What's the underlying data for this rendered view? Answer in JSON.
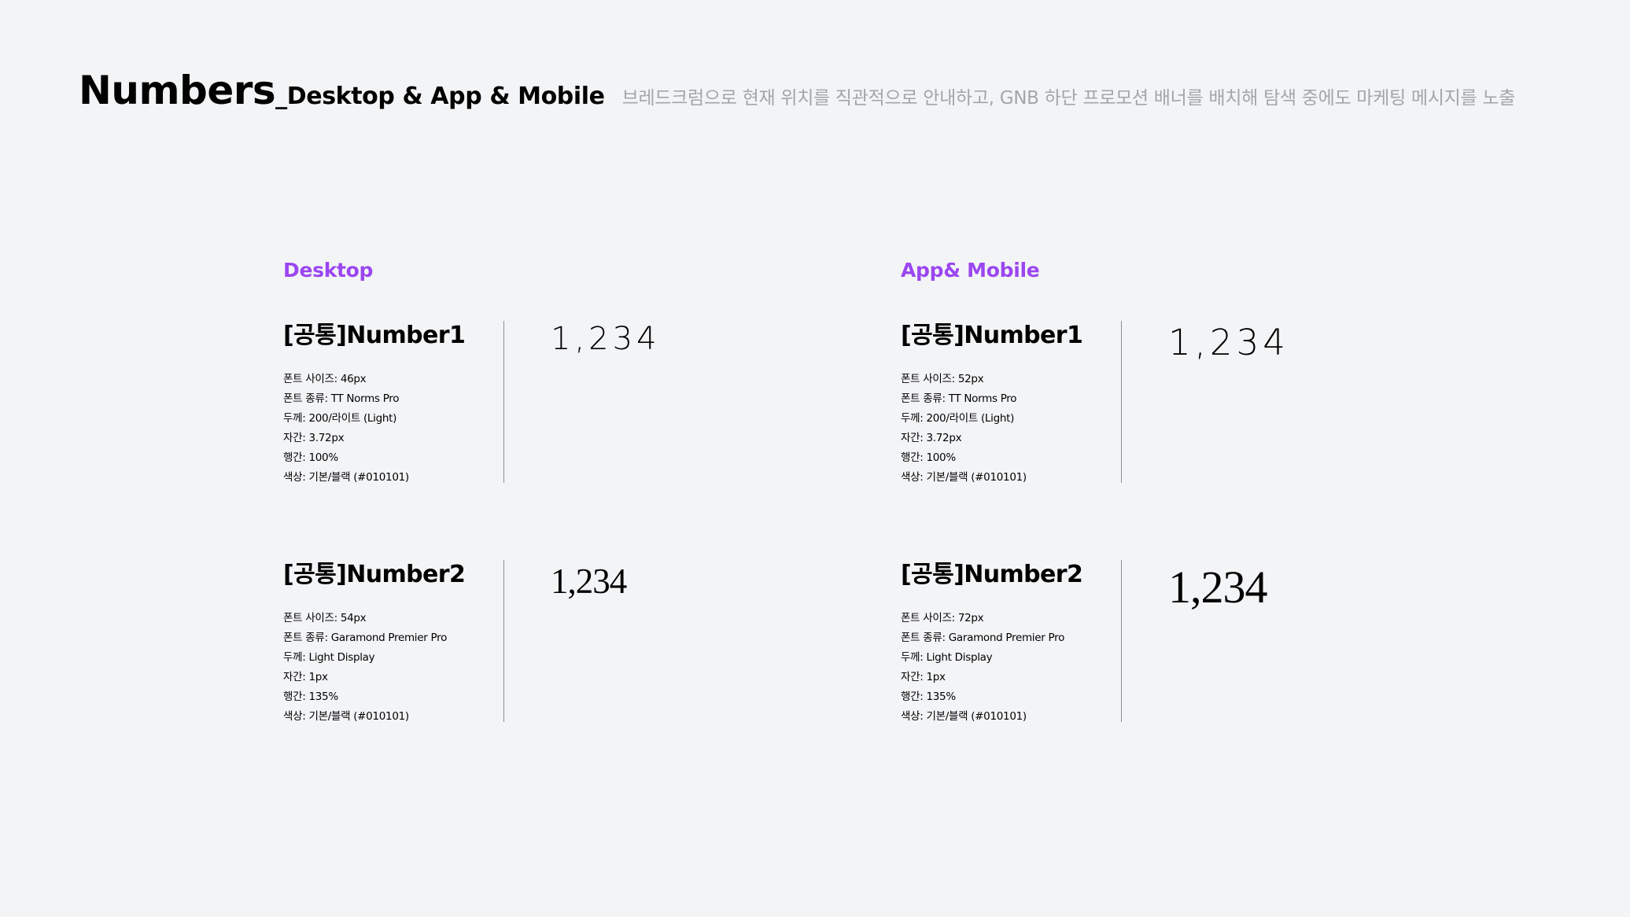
{
  "header": {
    "title_main": "Numbers",
    "title_sub": "_Desktop & App & Mobile",
    "description": "브레드크럼으로 현재 위치를 직관적으로 안내하고, GNB 하단 프로모션 배너를 배치해 탐색 중에도 마케팅 메시지를 노출"
  },
  "sections": {
    "desktop": {
      "label": "Desktop",
      "number1": {
        "name": "[공통]Number1",
        "sample": "1,234",
        "props": [
          "폰트 사이즈: 46px",
          "폰트 종류: TT Norms Pro",
          "두께: 200/라이트 (Light)",
          "자간: 3.72px",
          "행간: 100%",
          "색상: 기본/블랙 (#010101)"
        ]
      },
      "number2": {
        "name": "[공통]Number2",
        "sample": "1,234",
        "props": [
          "폰트 사이즈: 54px",
          "폰트 종류: Garamond Premier Pro",
          "두께: Light Display",
          "자간: 1px",
          "행간: 135%",
          "색상: 기본/블랙 (#010101)"
        ]
      }
    },
    "mobile": {
      "label": "App& Mobile",
      "number1": {
        "name": "[공통]Number1",
        "sample": "1,234",
        "props": [
          "폰트 사이즈: 52px",
          "폰트 종류: TT Norms Pro",
          "두께: 200/라이트 (Light)",
          "자간: 3.72px",
          "행간: 100%",
          "색상: 기본/블랙 (#010101)"
        ]
      },
      "number2": {
        "name": "[공통]Number2",
        "sample": "1,234",
        "props": [
          "폰트 사이즈: 72px",
          "폰트 종류: Garamond Premier Pro",
          "두께: Light Display",
          "자간: 1px",
          "행간: 135%",
          "색상: 기본/블랙 (#010101)"
        ]
      }
    }
  },
  "colors": {
    "accent": "#9b46f0",
    "text": "#010101",
    "muted": "#a3a5aa",
    "background": "#f3f4f6",
    "divider": "#8b8d91"
  }
}
